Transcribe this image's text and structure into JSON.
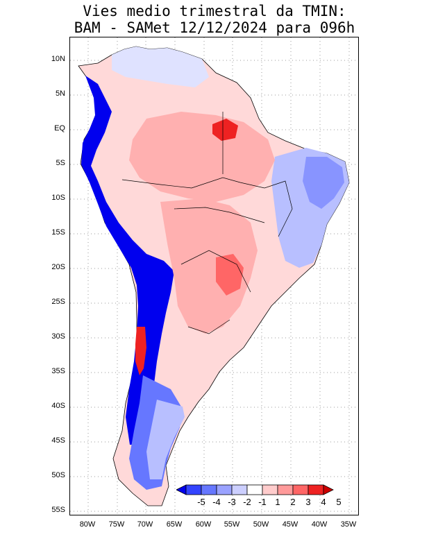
{
  "title": {
    "line1": "Vies medio trimestral da TMIN:",
    "line2": "BAM - SAMet 12/12/2024  para 096h"
  },
  "axes": {
    "lon_labels": [
      "80W",
      "75W",
      "70W",
      "65W",
      "60W",
      "55W",
      "50W",
      "45W",
      "40W",
      "35W"
    ],
    "lat_labels": [
      "10N",
      "5N",
      "EQ",
      "5S",
      "10S",
      "15S",
      "20S",
      "25S",
      "30S",
      "35S",
      "40S",
      "45S",
      "50S",
      "55S"
    ]
  },
  "colorbar": {
    "labels": [
      "-5",
      "-4",
      "-3",
      "-2",
      "-1",
      "1",
      "2",
      "3",
      "4",
      "5"
    ],
    "colors": [
      "#0000ee",
      "#3344ff",
      "#6677ff",
      "#9aa2ff",
      "#cccfff",
      "#ffffff",
      "#ffcccc",
      "#ff9a9a",
      "#ff6666",
      "#ee2222",
      "#cc0000"
    ]
  },
  "map": {
    "description_region": "South America",
    "field": "TMIN bias",
    "colors": {
      "strong_blue": "#0000ee",
      "mid_blue": "#6677ff",
      "light_blue": "#b8bfff",
      "pale_blue": "#dfe2ff",
      "pale_red": "#ffd9d9",
      "light_red": "#ffb0b0",
      "mid_red": "#ff7a7a",
      "strong_red": "#ee2222"
    }
  }
}
